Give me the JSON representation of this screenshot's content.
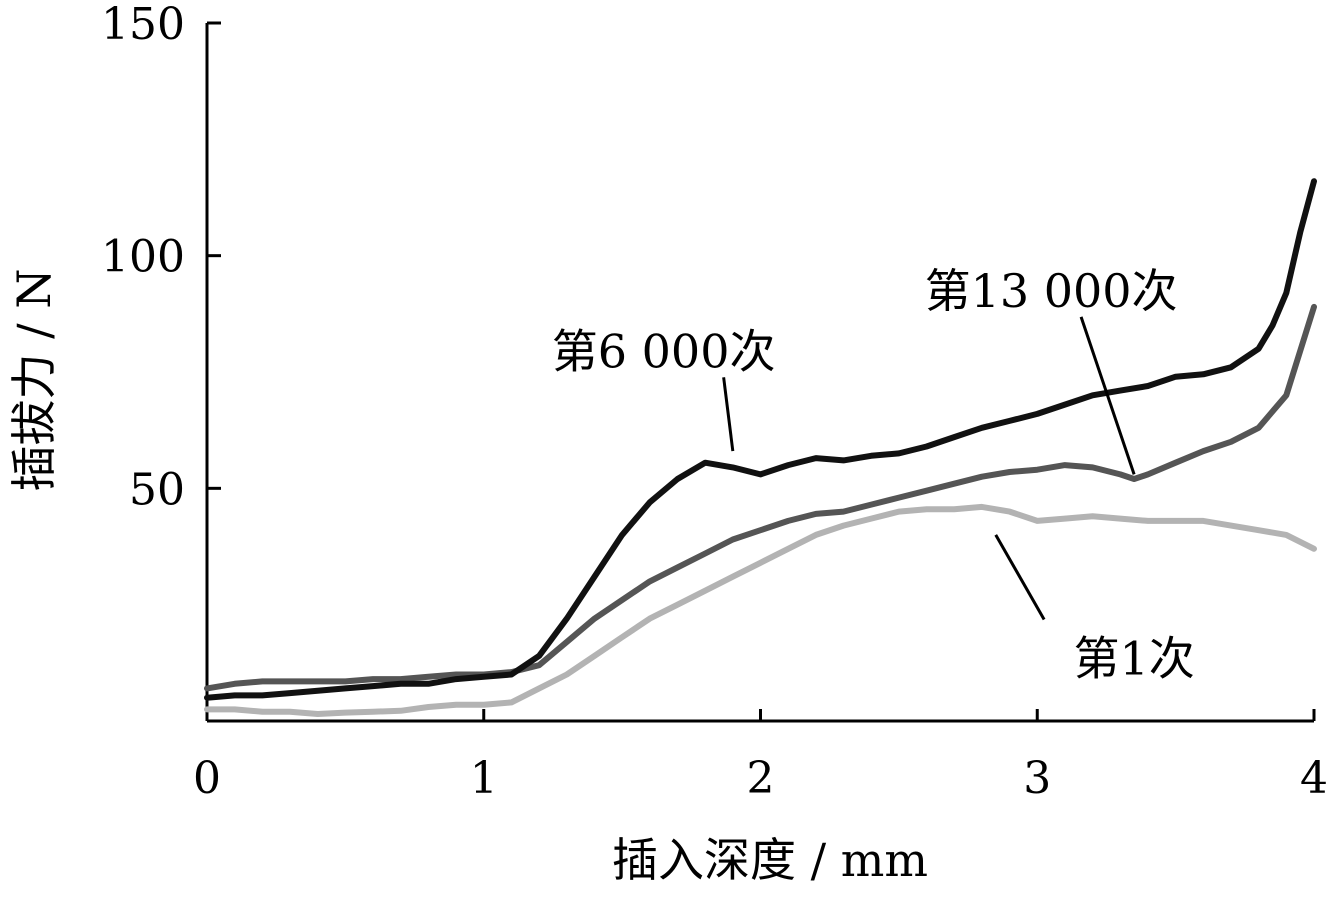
{
  "chart_data": {
    "type": "line",
    "xlabel": "插入深度 / mm",
    "ylabel": "插拔力 / N",
    "xlim": [
      0,
      4
    ],
    "ylim": [
      0,
      150
    ],
    "x_ticks": [
      0,
      1,
      2,
      3,
      4
    ],
    "y_ticks": [
      50,
      100,
      150
    ],
    "x_tick_labels": [
      "0",
      "1",
      "2",
      "3",
      "4"
    ],
    "y_tick_labels": [
      "50",
      "100",
      "150"
    ],
    "grid": false,
    "legend": "none",
    "series": [
      {
        "name": "第1次",
        "color": "#b3b3b3",
        "label_anchor": [
          3.35,
          10
        ],
        "leader_to": [
          2.85,
          40
        ],
        "x": [
          0,
          0.1,
          0.2,
          0.3,
          0.4,
          0.5,
          0.6,
          0.7,
          0.8,
          0.9,
          1.0,
          1.1,
          1.2,
          1.3,
          1.4,
          1.5,
          1.6,
          1.7,
          1.8,
          1.9,
          2.0,
          2.1,
          2.2,
          2.3,
          2.4,
          2.5,
          2.6,
          2.7,
          2.8,
          2.9,
          3.0,
          3.1,
          3.2,
          3.3,
          3.4,
          3.5,
          3.6,
          3.7,
          3.8,
          3.9,
          4.0
        ],
        "values": [
          2.5,
          2.5,
          2.0,
          2.0,
          1.5,
          1.8,
          2.0,
          2.2,
          3.0,
          3.5,
          3.5,
          4.0,
          7.0,
          10.0,
          14.0,
          18.0,
          22.0,
          25.0,
          28.0,
          31.0,
          34.0,
          37.0,
          40.0,
          42.0,
          43.5,
          45.0,
          45.5,
          45.5,
          46.0,
          45.0,
          43.0,
          43.5,
          44.0,
          43.5,
          43.0,
          43.0,
          43.0,
          42.0,
          41.0,
          40.0,
          37.0
        ]
      },
      {
        "name": "第13 000次",
        "color": "#555555",
        "label_anchor": [
          3.05,
          89
        ],
        "leader_to": [
          3.35,
          53
        ],
        "x": [
          0,
          0.1,
          0.2,
          0.3,
          0.4,
          0.5,
          0.6,
          0.7,
          0.8,
          0.9,
          1.0,
          1.1,
          1.2,
          1.3,
          1.4,
          1.5,
          1.6,
          1.7,
          1.8,
          1.9,
          2.0,
          2.1,
          2.2,
          2.3,
          2.4,
          2.5,
          2.6,
          2.7,
          2.8,
          2.9,
          3.0,
          3.1,
          3.2,
          3.3,
          3.35,
          3.4,
          3.5,
          3.6,
          3.7,
          3.8,
          3.9,
          4.0
        ],
        "values": [
          7.0,
          8.0,
          8.5,
          8.5,
          8.5,
          8.5,
          9.0,
          9.0,
          9.5,
          10.0,
          10.0,
          10.5,
          12.0,
          17.0,
          22.0,
          26.0,
          30.0,
          33.0,
          36.0,
          39.0,
          41.0,
          43.0,
          44.5,
          45.0,
          46.5,
          48.0,
          49.5,
          51.0,
          52.5,
          53.5,
          54.0,
          55.0,
          54.5,
          53.0,
          52.0,
          53.0,
          55.5,
          58.0,
          60.0,
          63.0,
          70.0,
          89.0
        ]
      },
      {
        "name": "第6 000次",
        "color": "#111111",
        "label_anchor": [
          1.65,
          76
        ],
        "leader_to": [
          1.9,
          58
        ],
        "x": [
          0,
          0.1,
          0.2,
          0.3,
          0.4,
          0.5,
          0.6,
          0.7,
          0.8,
          0.9,
          1.0,
          1.1,
          1.2,
          1.3,
          1.4,
          1.5,
          1.6,
          1.7,
          1.8,
          1.9,
          2.0,
          2.1,
          2.2,
          2.3,
          2.4,
          2.5,
          2.6,
          2.7,
          2.8,
          2.9,
          3.0,
          3.1,
          3.2,
          3.3,
          3.4,
          3.5,
          3.6,
          3.7,
          3.8,
          3.85,
          3.9,
          3.95,
          4.0
        ],
        "values": [
          5.0,
          5.5,
          5.5,
          6.0,
          6.5,
          7.0,
          7.5,
          8.0,
          8.0,
          9.0,
          9.5,
          10.0,
          14.0,
          22.0,
          31.0,
          40.0,
          47.0,
          52.0,
          55.5,
          54.5,
          53.0,
          55.0,
          56.5,
          56.0,
          57.0,
          57.5,
          59.0,
          61.0,
          63.0,
          64.5,
          66.0,
          68.0,
          70.0,
          71.0,
          72.0,
          74.0,
          74.5,
          76.0,
          80.0,
          85.0,
          92.0,
          105.0,
          116.0
        ]
      }
    ]
  }
}
